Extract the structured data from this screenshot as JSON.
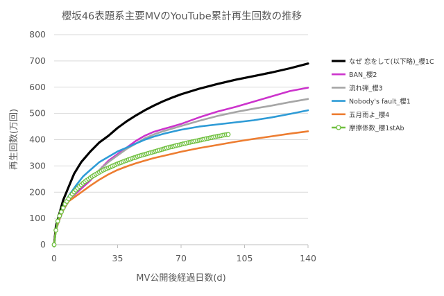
{
  "chart_data": {
    "type": "line",
    "title": "櫻坂46表題系主要MVのYouTube累計再生回数の推移",
    "xlabel": "MV公開後経過日数(d)",
    "ylabel": "再生回数(万回)",
    "xlim": [
      0,
      140
    ],
    "ylim": [
      0,
      800
    ],
    "x_ticks": [
      0,
      35,
      70,
      105,
      140
    ],
    "y_ticks": [
      0,
      100,
      200,
      300,
      400,
      500,
      600,
      700,
      800
    ],
    "grid": "horizontal",
    "legend_position": "right",
    "series": [
      {
        "name": "なぜ 恋をして(以下略)_櫻1C",
        "color": "#000000",
        "markers": false,
        "points": [
          [
            0,
            0
          ],
          [
            1,
            70
          ],
          [
            3,
            120
          ],
          [
            5,
            170
          ],
          [
            8,
            220
          ],
          [
            11,
            270
          ],
          [
            15,
            315
          ],
          [
            20,
            355
          ],
          [
            25,
            390
          ],
          [
            30,
            415
          ],
          [
            35,
            445
          ],
          [
            40,
            470
          ],
          [
            45,
            492
          ],
          [
            50,
            512
          ],
          [
            55,
            530
          ],
          [
            60,
            546
          ],
          [
            65,
            560
          ],
          [
            70,
            573
          ],
          [
            80,
            594
          ],
          [
            90,
            612
          ],
          [
            100,
            628
          ],
          [
            110,
            642
          ],
          [
            120,
            656
          ],
          [
            130,
            672
          ],
          [
            140,
            690
          ]
        ]
      },
      {
        "name": "BAN_櫻2",
        "color": "#cc33cc",
        "markers": false,
        "points": [
          [
            0,
            0
          ],
          [
            1,
            60
          ],
          [
            3,
            100
          ],
          [
            5,
            135
          ],
          [
            8,
            170
          ],
          [
            12,
            195
          ],
          [
            16,
            220
          ],
          [
            20,
            245
          ],
          [
            25,
            285
          ],
          [
            30,
            320
          ],
          [
            35,
            345
          ],
          [
            40,
            370
          ],
          [
            45,
            395
          ],
          [
            50,
            415
          ],
          [
            55,
            430
          ],
          [
            60,
            440
          ],
          [
            65,
            450
          ],
          [
            70,
            460
          ],
          [
            80,
            485
          ],
          [
            90,
            507
          ],
          [
            100,
            525
          ],
          [
            110,
            545
          ],
          [
            120,
            565
          ],
          [
            130,
            585
          ],
          [
            140,
            598
          ]
        ]
      },
      {
        "name": "流れ弾_櫻3",
        "color": "#a6a6a6",
        "markers": false,
        "points": [
          [
            0,
            0
          ],
          [
            1,
            55
          ],
          [
            3,
            95
          ],
          [
            5,
            130
          ],
          [
            8,
            165
          ],
          [
            12,
            200
          ],
          [
            16,
            230
          ],
          [
            20,
            255
          ],
          [
            25,
            285
          ],
          [
            30,
            315
          ],
          [
            35,
            340
          ],
          [
            40,
            365
          ],
          [
            45,
            385
          ],
          [
            50,
            405
          ],
          [
            55,
            420
          ],
          [
            60,
            432
          ],
          [
            65,
            442
          ],
          [
            70,
            452
          ],
          [
            80,
            472
          ],
          [
            90,
            490
          ],
          [
            100,
            505
          ],
          [
            110,
            518
          ],
          [
            120,
            530
          ],
          [
            130,
            543
          ],
          [
            140,
            555
          ]
        ]
      },
      {
        "name": "Nobody's fault_櫻1",
        "color": "#2e9bd6",
        "markers": false,
        "points": [
          [
            0,
            0
          ],
          [
            1,
            60
          ],
          [
            3,
            110
          ],
          [
            5,
            145
          ],
          [
            8,
            185
          ],
          [
            12,
            225
          ],
          [
            16,
            260
          ],
          [
            20,
            285
          ],
          [
            25,
            315
          ],
          [
            30,
            335
          ],
          [
            35,
            355
          ],
          [
            40,
            370
          ],
          [
            45,
            385
          ],
          [
            50,
            400
          ],
          [
            55,
            412
          ],
          [
            60,
            422
          ],
          [
            65,
            430
          ],
          [
            70,
            438
          ],
          [
            80,
            450
          ],
          [
            90,
            458
          ],
          [
            100,
            466
          ],
          [
            110,
            474
          ],
          [
            120,
            485
          ],
          [
            130,
            498
          ],
          [
            140,
            512
          ]
        ]
      },
      {
        "name": "五月雨よ_櫻4",
        "color": "#ed7d31",
        "markers": false,
        "points": [
          [
            0,
            0
          ],
          [
            1,
            60
          ],
          [
            3,
            100
          ],
          [
            5,
            135
          ],
          [
            8,
            165
          ],
          [
            12,
            185
          ],
          [
            16,
            205
          ],
          [
            20,
            225
          ],
          [
            25,
            248
          ],
          [
            30,
            268
          ],
          [
            35,
            285
          ],
          [
            40,
            298
          ],
          [
            45,
            310
          ],
          [
            50,
            320
          ],
          [
            55,
            330
          ],
          [
            60,
            338
          ],
          [
            65,
            346
          ],
          [
            70,
            354
          ],
          [
            80,
            368
          ],
          [
            90,
            380
          ],
          [
            100,
            392
          ],
          [
            110,
            403
          ],
          [
            120,
            413
          ],
          [
            130,
            423
          ],
          [
            140,
            432
          ]
        ]
      },
      {
        "name": "摩擦係数_櫻1stAb",
        "color": "#70c040",
        "markers": true,
        "points": [
          [
            0,
            0
          ],
          [
            1,
            55
          ],
          [
            2,
            90
          ],
          [
            3,
            110
          ],
          [
            4,
            125
          ],
          [
            5,
            140
          ],
          [
            6,
            155
          ],
          [
            7,
            165
          ],
          [
            8,
            175
          ],
          [
            9,
            185
          ],
          [
            10,
            193
          ],
          [
            11,
            201
          ],
          [
            12,
            208
          ],
          [
            13,
            215
          ],
          [
            14,
            222
          ],
          [
            15,
            228
          ],
          [
            16,
            234
          ],
          [
            17,
            240
          ],
          [
            18,
            245
          ],
          [
            19,
            250
          ],
          [
            20,
            255
          ],
          [
            21,
            260
          ],
          [
            22,
            264
          ],
          [
            23,
            268
          ],
          [
            24,
            272
          ],
          [
            25,
            276
          ],
          [
            26,
            280
          ],
          [
            27,
            284
          ],
          [
            28,
            287
          ],
          [
            29,
            290
          ],
          [
            30,
            293
          ],
          [
            31,
            296
          ],
          [
            32,
            299
          ],
          [
            33,
            302
          ],
          [
            34,
            305
          ],
          [
            35,
            308
          ],
          [
            36,
            311
          ],
          [
            37,
            313
          ],
          [
            38,
            316
          ],
          [
            39,
            319
          ],
          [
            40,
            321
          ],
          [
            41,
            324
          ],
          [
            42,
            326
          ],
          [
            43,
            329
          ],
          [
            44,
            331
          ],
          [
            45,
            333
          ],
          [
            46,
            336
          ],
          [
            47,
            338
          ],
          [
            48,
            340
          ],
          [
            49,
            342
          ],
          [
            50,
            344
          ],
          [
            51,
            346
          ],
          [
            52,
            348
          ],
          [
            53,
            350
          ],
          [
            54,
            352
          ],
          [
            55,
            354
          ],
          [
            56,
            356
          ],
          [
            57,
            358
          ],
          [
            58,
            360
          ],
          [
            59,
            362
          ],
          [
            60,
            364
          ],
          [
            61,
            366
          ],
          [
            62,
            368
          ],
          [
            63,
            370
          ],
          [
            64,
            372
          ],
          [
            65,
            373
          ],
          [
            66,
            375
          ],
          [
            67,
            377
          ],
          [
            68,
            379
          ],
          [
            69,
            380
          ],
          [
            70,
            382
          ],
          [
            71,
            384
          ],
          [
            72,
            385
          ],
          [
            73,
            387
          ],
          [
            74,
            389
          ],
          [
            75,
            390
          ],
          [
            76,
            392
          ],
          [
            77,
            393
          ],
          [
            78,
            395
          ],
          [
            79,
            396
          ],
          [
            80,
            398
          ],
          [
            81,
            399
          ],
          [
            82,
            401
          ],
          [
            83,
            402
          ],
          [
            84,
            404
          ],
          [
            85,
            405
          ],
          [
            86,
            407
          ],
          [
            87,
            408
          ],
          [
            88,
            410
          ],
          [
            89,
            411
          ],
          [
            90,
            413
          ],
          [
            91,
            414
          ],
          [
            92,
            415
          ],
          [
            93,
            417
          ],
          [
            94,
            418
          ],
          [
            95,
            419
          ],
          [
            96,
            420
          ]
        ]
      }
    ]
  }
}
